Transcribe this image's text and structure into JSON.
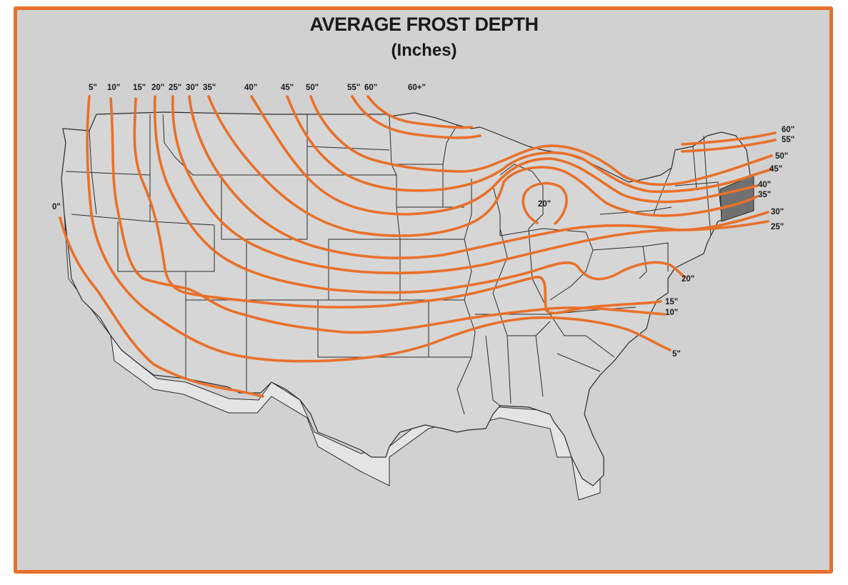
{
  "title": "AVERAGE FROST DEPTH",
  "subtitle": "(Inches)",
  "colors": {
    "frame": "#e8702a",
    "contour": "#e8702a",
    "background": "#d1d1d1",
    "map_lines": "#2a2a2a",
    "shaded_area": "#707070"
  },
  "top_labels": [
    "5\"",
    "10\"",
    "15\"",
    "20\"",
    "25\"",
    "30\"",
    "35\"",
    "40\"",
    "45\"",
    "50\"",
    "55\"",
    "60\"",
    "60+\""
  ],
  "left_labels": [
    "0\""
  ],
  "right_labels": [
    "60\"",
    "55\"",
    "50\"",
    "45\"",
    "40\"",
    "35\"",
    "30\"",
    "25\"",
    "20\"",
    "15\"",
    "10\"",
    "5\""
  ],
  "inner_labels": [
    "20\""
  ]
}
